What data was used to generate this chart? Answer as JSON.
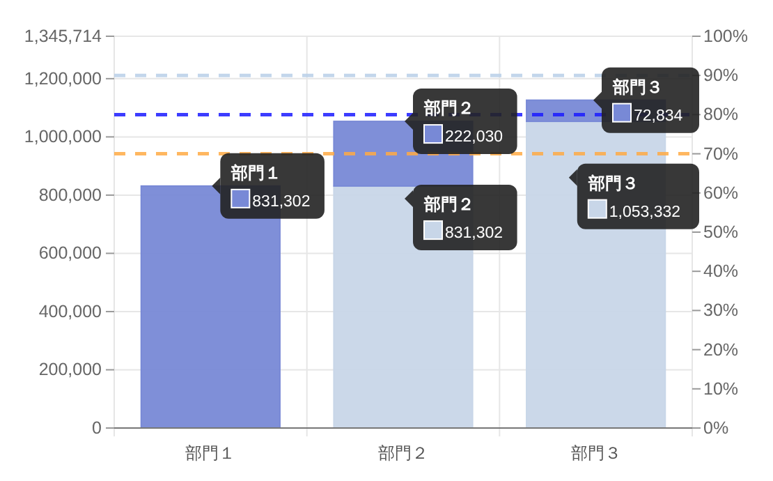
{
  "chart_data": {
    "type": "bar",
    "stacked": true,
    "categories": [
      "部門１",
      "部門２",
      "部門３"
    ],
    "series": [
      {
        "color": "#c8d6e8",
        "values": [
          null,
          831302,
          1053332
        ],
        "value_labels": [
          null,
          "831,302",
          "1,053,332"
        ]
      },
      {
        "color": "#7889d6",
        "values": [
          831302,
          222030,
          72834
        ],
        "value_labels": [
          "831,302",
          "222,030",
          "72,834"
        ]
      }
    ],
    "ylim": [
      0,
      1345714
    ],
    "yticks": [
      {
        "value": 0,
        "label": "0"
      },
      {
        "value": 200000,
        "label": "200,000"
      },
      {
        "value": 400000,
        "label": "400,000"
      },
      {
        "value": 600000,
        "label": "600,000"
      },
      {
        "value": 800000,
        "label": "800,000"
      },
      {
        "value": 1000000,
        "label": "1,000,000"
      },
      {
        "value": 1200000,
        "label": "1,200,000"
      },
      {
        "value": 1345714,
        "label": "1,345,714"
      }
    ],
    "y2lim": [
      0,
      100
    ],
    "y2ticks": [
      {
        "value": 0,
        "label": "0%"
      },
      {
        "value": 10,
        "label": "10%"
      },
      {
        "value": 20,
        "label": "20%"
      },
      {
        "value": 30,
        "label": "30%"
      },
      {
        "value": 40,
        "label": "40%"
      },
      {
        "value": 50,
        "label": "50%"
      },
      {
        "value": 60,
        "label": "60%"
      },
      {
        "value": 70,
        "label": "70%"
      },
      {
        "value": 80,
        "label": "80%"
      },
      {
        "value": 90,
        "label": "90%"
      },
      {
        "value": 100,
        "label": "100%"
      }
    ],
    "ref_lines": [
      {
        "axis": "y2",
        "value": 90,
        "color": "#b8cfe8",
        "line_style": "dashed"
      },
      {
        "axis": "y2",
        "value": 80,
        "color": "#1a1aff",
        "line_style": "dashed"
      },
      {
        "axis": "y2",
        "value": 70,
        "color": "#ffaa44",
        "line_style": "dashed"
      }
    ],
    "grid": true
  }
}
